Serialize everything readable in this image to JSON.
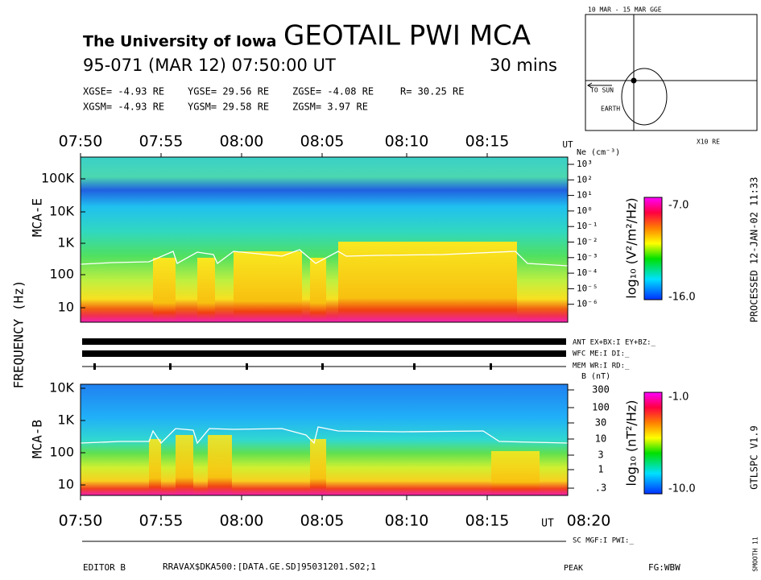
{
  "header": {
    "institution": "The University of Iowa",
    "title": "GEOTAIL PWI MCA",
    "date": "95-071 (MAR 12) 07:50:00 UT",
    "span": "30 mins",
    "gse": [
      "XGSE= -4.93 RE",
      "YGSE= 29.56 RE",
      "ZGSE= -4.08 RE",
      "R= 30.25 RE"
    ],
    "gsm": [
      "XGSM= -4.93 RE",
      "YGSM= 29.58 RE",
      "ZGSM=  3.97 RE"
    ]
  },
  "orbit": {
    "title": "10 MAR - 15 MAR  GGE",
    "to_sun": "TO SUN",
    "earth": "EARTH",
    "scale": "X10 RE"
  },
  "time_axis": {
    "labels": [
      "07:50",
      "07:55",
      "08:00",
      "08:05",
      "08:10",
      "08:15"
    ],
    "unit": "UT",
    "end": "08:20"
  },
  "y_axis_label": "FREQUENCY (Hz)",
  "mca_e": {
    "name": "MCA-E",
    "freq_labels": [
      "100K",
      "10K",
      "1K",
      "100",
      "10"
    ],
    "ne_label": "Ne (cm⁻³)",
    "ne_ticks": [
      "10³",
      "10²",
      "10¹",
      "10⁰",
      "10⁻¹",
      "10⁻²",
      "10⁻³",
      "10⁻⁴",
      "10⁻⁵",
      "10⁻⁶"
    ],
    "colorbar": {
      "max": "-7.0",
      "min": "-16.0",
      "label": "log₁₀ (V²/m²/Hz)"
    }
  },
  "status": [
    "ANT EX+BX:I EY+BZ:_",
    "WFC ME:I    DI:_",
    "MEM WR:I    RD:_"
  ],
  "mca_b": {
    "name": "MCA-B",
    "freq_labels": [
      "10K",
      "1K",
      "100",
      "10"
    ],
    "b_label": "B (nT)",
    "b_ticks": [
      "300",
      "100",
      "30",
      "10",
      "3",
      "1",
      ".3"
    ],
    "colorbar": {
      "max": "-1.0",
      "min": "-10.0",
      "label": "log₁₀ (nT²/Hz)"
    }
  },
  "sc_status": "SC MGF:I    PWI:_",
  "footer": {
    "editor": "EDITOR B",
    "file": "RRAVAX$DKA500:[DATA.GE.SD]95031201.S02;1",
    "mode": "PEAK",
    "fg": "FG:WBW"
  },
  "side": {
    "processed": "PROCESSED 12-JAN-02  11:33",
    "version": "GTLSPC   V1.9",
    "smooth": "SMOOTH 11"
  }
}
